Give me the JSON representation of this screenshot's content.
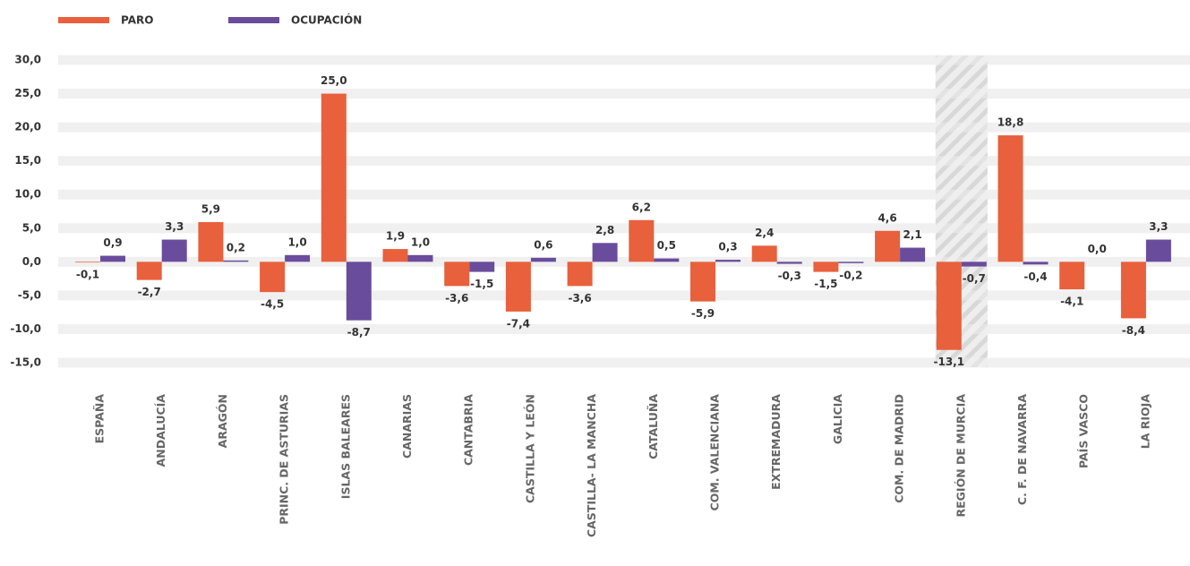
{
  "chart_data": {
    "type": "bar",
    "categories": [
      "ESPAÑA",
      "ANDALUCÍA",
      "ARAGÓN",
      "PRINC. DE ASTURIAS",
      "ISLAS BALEARES",
      "CANARIAS",
      "CANTABRIA",
      "CASTILLA Y LEÓN",
      "CASTILLA- LA MANCHA",
      "CATALUÑA",
      "COM. VALENCIANA",
      "EXTREMADURA",
      "GALICIA",
      "COM. DE MADRID",
      "REGIÓN DE MURCIA",
      "C. F. DE NAVARRA",
      "PAÍS VASCO",
      "LA RIOJA"
    ],
    "series": [
      {
        "name": "PARO",
        "color": "#e8603c",
        "values": [
          -0.1,
          -2.7,
          5.9,
          -4.5,
          25.0,
          1.9,
          -3.6,
          -7.4,
          -3.6,
          6.2,
          -5.9,
          2.4,
          -1.5,
          4.6,
          -13.1,
          18.8,
          -4.1,
          -8.4
        ],
        "value_labels": [
          "-0,1",
          "-2,7",
          "5,9",
          "-4,5",
          "25,0",
          "1,9",
          "-3,6",
          "-7,4",
          "-3,6",
          "6,2",
          "-5,9",
          "2,4",
          "-1,5",
          "4,6",
          "-13,1",
          "18,8",
          "-4,1",
          "-8,4"
        ]
      },
      {
        "name": "OCUPACIÓN",
        "color": "#6a4c9c",
        "values": [
          0.9,
          3.3,
          0.2,
          1.0,
          -8.7,
          1.0,
          -1.5,
          0.6,
          2.8,
          0.5,
          0.3,
          -0.3,
          -0.2,
          2.1,
          -0.7,
          -0.4,
          0.0,
          3.3
        ],
        "value_labels": [
          "0,9",
          "3,3",
          "0,2",
          "1,0",
          "-8,7",
          "1,0",
          "-1,5",
          "0,6",
          "2,8",
          "0,5",
          "0,3",
          "-0,3",
          "-0,2",
          "2,1",
          "-0,7",
          "-0,4",
          "0,0",
          "3,3"
        ]
      }
    ],
    "ylim": [
      -15,
      30
    ],
    "yticks": [
      {
        "value": 30,
        "label": "30,0"
      },
      {
        "value": 25,
        "label": "25,0"
      },
      {
        "value": 20,
        "label": "20,0"
      },
      {
        "value": 15,
        "label": "15,0"
      },
      {
        "value": 10,
        "label": "10,0"
      },
      {
        "value": 5,
        "label": "5,0"
      },
      {
        "value": 0,
        "label": "0,0"
      },
      {
        "value": -5,
        "label": "-5,0"
      },
      {
        "value": -10,
        "label": "-10,0"
      },
      {
        "value": -15,
        "label": "-15,0"
      }
    ],
    "grid": true,
    "legend": "top-left",
    "highlight_category": "REGIÓN DE MURCIA"
  }
}
